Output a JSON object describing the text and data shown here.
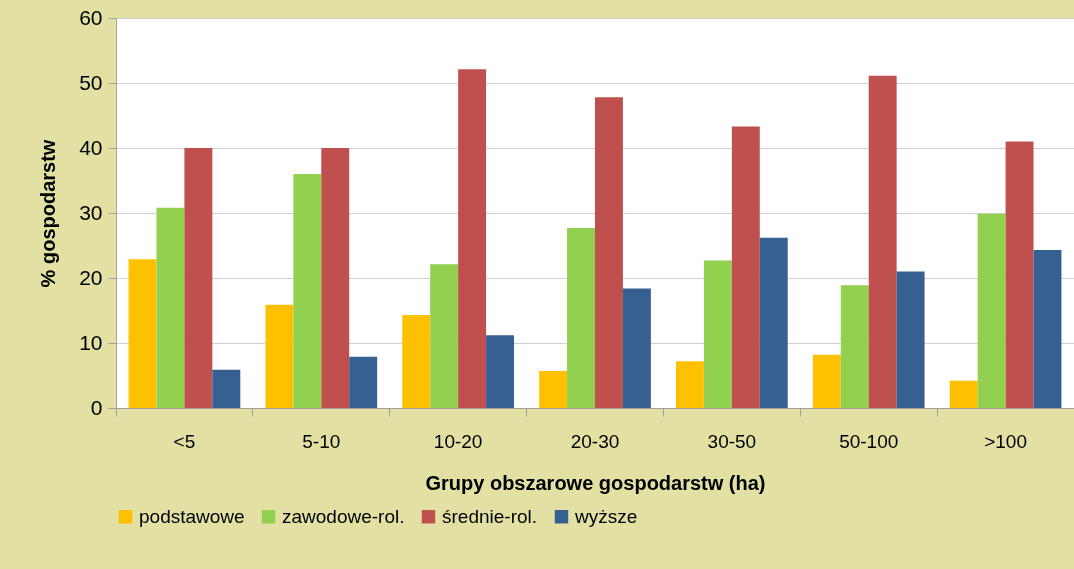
{
  "chart_data": {
    "type": "bar",
    "xlabel": "Grupy obszarowe gospodarstw (ha)",
    "ylabel": "% gospodarstw",
    "categories": [
      "<5",
      "5-10",
      "10-20",
      "20-30",
      "30-50",
      "50-100",
      ">100"
    ],
    "series": [
      {
        "name": "podstawowe",
        "color": "#ffc000",
        "values": [
          22.9,
          15.9,
          14.3,
          5.7,
          7.2,
          8.2,
          4.2
        ]
      },
      {
        "name": "zawodowe-rol.",
        "color": "#92d050",
        "values": [
          30.8,
          36.0,
          22.1,
          27.7,
          22.7,
          18.9,
          29.9
        ]
      },
      {
        "name": "średnie-rol.",
        "color": "#c0504d",
        "values": [
          40.0,
          40.0,
          52.1,
          47.8,
          43.3,
          51.1,
          41.0
        ]
      },
      {
        "name": "wyższe",
        "color": "#376092",
        "values": [
          5.9,
          7.9,
          11.2,
          18.4,
          26.2,
          21.0,
          24.3
        ]
      }
    ],
    "ylim": [
      0,
      60
    ],
    "yticks": [
      0,
      10,
      20,
      30,
      40,
      50,
      60
    ],
    "grid": "y",
    "legend": "bottom"
  }
}
